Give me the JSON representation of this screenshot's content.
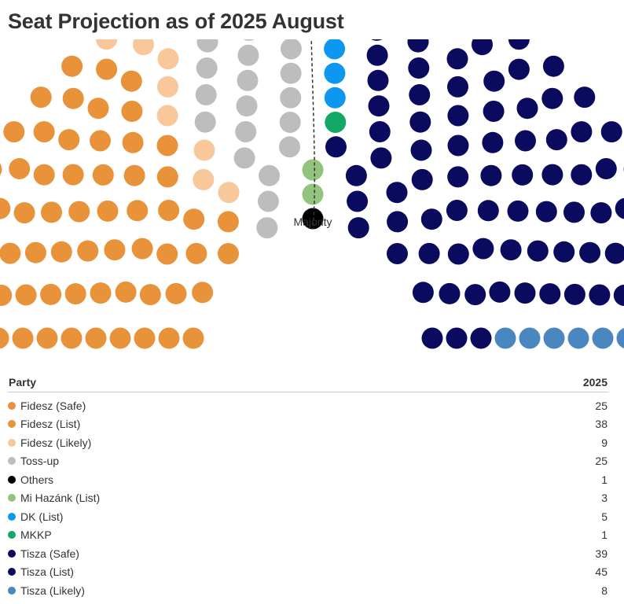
{
  "title": "Seat Projection as of 2025 August",
  "chart_data": {
    "type": "parliament",
    "title": "Seat Projection as of 2025 August",
    "total_seats": 199,
    "majority_label": "Majority",
    "column_headers": [
      "Party",
      "2025"
    ],
    "series": [
      {
        "name": "Fidesz (Safe)",
        "value": 25,
        "color": "#e8923a"
      },
      {
        "name": "Fidesz (List)",
        "value": 38,
        "color": "#e8923a"
      },
      {
        "name": "Fidesz (Likely)",
        "value": 9,
        "color": "#f8c89a"
      },
      {
        "name": "Toss-up",
        "value": 25,
        "color": "#bdbdbd"
      },
      {
        "name": "Others",
        "value": 1,
        "color": "#000000"
      },
      {
        "name": "Mi Hazánk (List)",
        "value": 3,
        "color": "#93c47d"
      },
      {
        "name": "DK (List)",
        "value": 5,
        "color": "#0e97f0"
      },
      {
        "name": "MKKP",
        "value": 1,
        "color": "#12a865"
      },
      {
        "name": "Tisza (Safe)",
        "value": 39,
        "color": "#0a0a5e"
      },
      {
        "name": "Tisza (List)",
        "value": 45,
        "color": "#0a0a5e"
      },
      {
        "name": "Tisza (Likely)",
        "value": 8,
        "color": "#4a86c0"
      }
    ]
  }
}
